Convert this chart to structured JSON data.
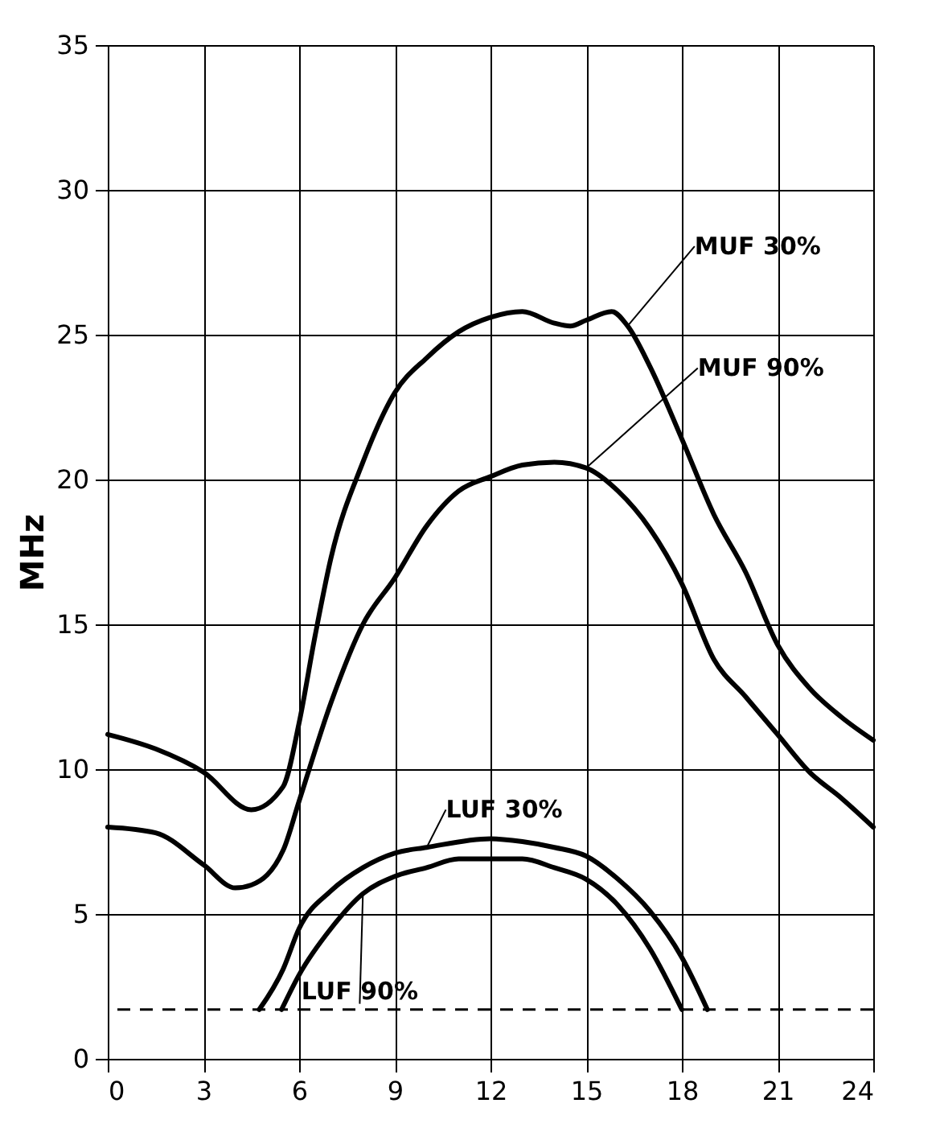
{
  "chart_data": {
    "type": "line",
    "ylabel": "MHz",
    "xlim": [
      0,
      24
    ],
    "xticks": [
      0,
      3,
      6,
      9,
      12,
      15,
      18,
      21,
      24
    ],
    "ylim": [
      0,
      35
    ],
    "yticks": [
      0,
      5,
      10,
      15,
      20,
      25,
      30,
      35
    ],
    "grid": true,
    "legend": false,
    "marker": "none",
    "line_style": "solid",
    "series": [
      {
        "name": "MUF 30%",
        "color": "#000000",
        "x": [
          0,
          1.5,
          3,
          4.5,
          5.5,
          6,
          6.5,
          7,
          8,
          9,
          10,
          11,
          12,
          13,
          14,
          14.5,
          15,
          15.8,
          16.3,
          17,
          18,
          19,
          20,
          21,
          22,
          23,
          24
        ],
        "values": [
          11.2,
          10.7,
          9.9,
          8.6,
          9.4,
          11.6,
          14.6,
          17.3,
          20.6,
          23.0,
          24.2,
          25.1,
          25.6,
          25.8,
          25.4,
          25.3,
          25.5,
          25.8,
          25.3,
          23.9,
          21.4,
          18.8,
          16.8,
          14.3,
          12.8,
          11.8,
          11.0
        ]
      },
      {
        "name": "MUF 90%",
        "color": "#000000",
        "x": [
          0,
          1.5,
          3,
          4,
          4.5,
          5.5,
          6,
          7,
          8,
          9,
          10,
          11,
          12,
          13,
          14,
          15,
          16,
          17,
          18,
          19,
          20,
          21,
          22,
          23,
          24
        ],
        "values": [
          8.0,
          7.8,
          6.7,
          5.9,
          6.0,
          7.2,
          8.9,
          12.3,
          15.0,
          16.6,
          18.4,
          19.6,
          20.1,
          20.5,
          20.6,
          20.4,
          19.6,
          18.3,
          16.4,
          13.8,
          12.5,
          11.2,
          9.9,
          9.0,
          8.0
        ]
      },
      {
        "name": "LUF 30%",
        "color": "#000000",
        "x": [
          4.75,
          5.5,
          6,
          7,
          8,
          9,
          10,
          12,
          13,
          14,
          15,
          16,
          17,
          18,
          18.8
        ],
        "values": [
          1.7,
          3.1,
          4.5,
          5.8,
          6.6,
          7.1,
          7.3,
          7.6,
          7.5,
          7.3,
          7.0,
          6.2,
          5.1,
          3.5,
          1.7
        ]
      },
      {
        "name": "LUF 90%",
        "color": "#000000",
        "x": [
          5.45,
          6,
          7,
          8,
          9,
          10,
          11,
          12,
          13,
          14,
          15,
          16,
          17,
          18
        ],
        "values": [
          1.7,
          2.9,
          4.5,
          5.7,
          6.3,
          6.6,
          6.9,
          6.9,
          6.9,
          6.6,
          6.2,
          5.3,
          3.8,
          1.7
        ]
      }
    ],
    "ref_lines": [
      {
        "axis": "y",
        "value": 1.7,
        "color": "#000000",
        "line_style": "dashed"
      }
    ]
  }
}
